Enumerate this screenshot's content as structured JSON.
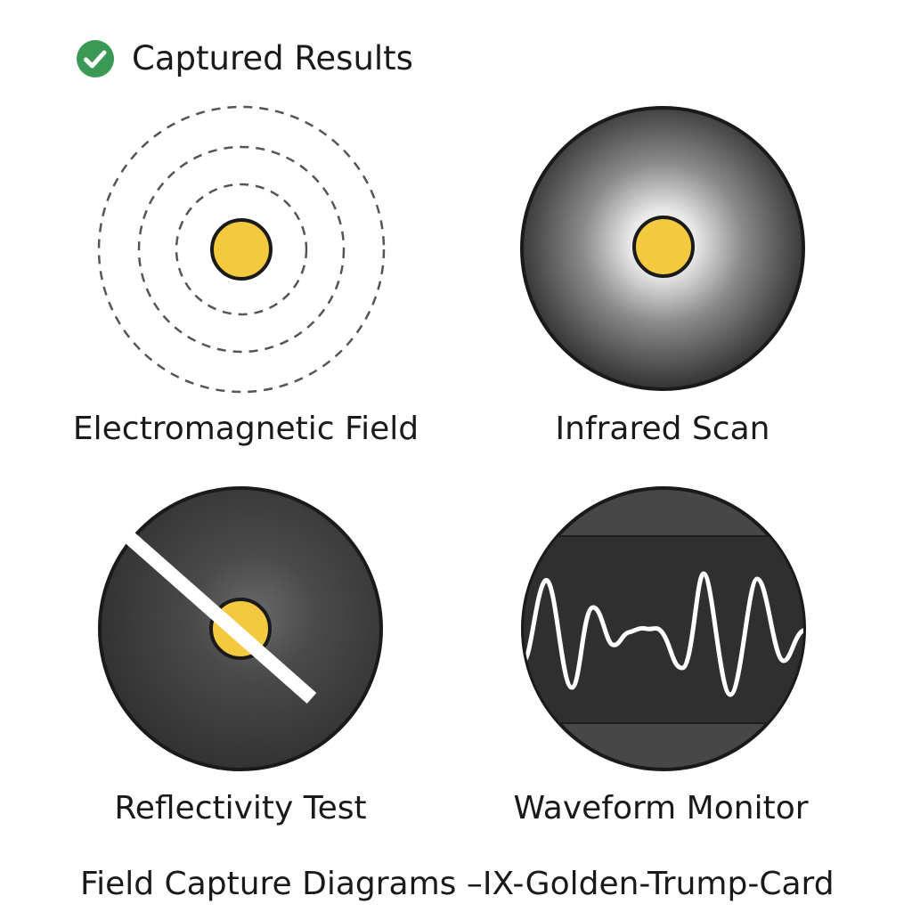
{
  "header": {
    "title": "Captured Results",
    "icon": "check-circle-icon",
    "icon_color": "#3a9a55"
  },
  "panels": [
    {
      "id": "electromagnetic-field",
      "label": "Electromagnetic Field",
      "icon": "concentric-rings-icon"
    },
    {
      "id": "infrared-scan",
      "label": "Infrared Scan",
      "icon": "radial-glow-icon"
    },
    {
      "id": "reflectivity-test",
      "label": "Reflectivity Test",
      "icon": "diagonal-beam-icon"
    },
    {
      "id": "waveform-monitor",
      "label": "Waveform Monitor",
      "icon": "waveform-icon"
    }
  ],
  "footer": {
    "caption": "Field Capture Diagrams –IX-Golden-Trump-Card"
  },
  "colors": {
    "core_yellow": "#f2c93f",
    "dark_disc": "#3a3a3a",
    "dash_stroke": "#555555",
    "outline": "#1a1a1a"
  }
}
